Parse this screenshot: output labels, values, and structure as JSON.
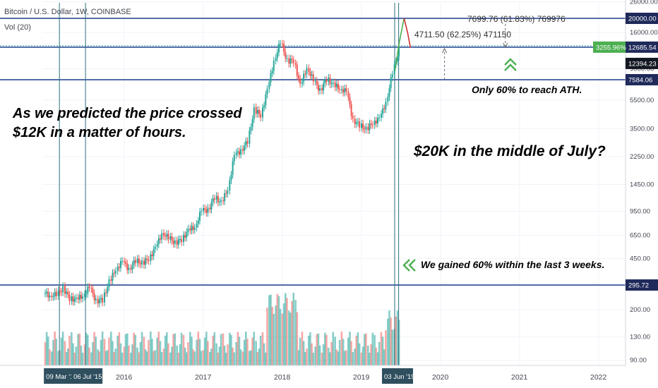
{
  "header": {
    "symbol": "Bitcoin / U.S. Dollar, 1W, COINBASE",
    "volume": "Vol (20)"
  },
  "annotations": {
    "predicted_line1": "As we predicted the price crossed",
    "predicted_line2": "$12K in a matter of hours.",
    "target": "$20K in the middle of July?",
    "ath": "Only 60% to reach ATH.",
    "gain": "We gained 60% within the last 3 weeks.",
    "measure_upper": "7699.76 (61.83%) 769976",
    "measure_lower": "4711.50 (62.25%) 471150"
  },
  "date_badges": {
    "a": "09 Mar '1",
    "b": "06 Jul '15",
    "c": "03 Jun '19"
  },
  "colors": {
    "up": "#26a69a",
    "down": "#ef5350",
    "level_line": "#1f3b8c",
    "accent_green": "#4caf50",
    "badge": "#2f4f5f"
  },
  "chart_data": {
    "type": "candlestick",
    "y_scale": "log",
    "ylim": [
      80,
      28000
    ],
    "price_ticks": [
      26000,
      16000,
      9000,
      5500,
      3500,
      2250,
      1450,
      950,
      650,
      450,
      290,
      200,
      130,
      90
    ],
    "x_labels": [
      "2016",
      "2017",
      "2018",
      "2019",
      "2020",
      "2021",
      "2022"
    ],
    "horizontal_levels": [
      {
        "value": 20000,
        "label": "20000.00"
      },
      {
        "value": 12685.54,
        "label": "12685.54"
      },
      {
        "value": 7584,
        "label": "7584.06"
      },
      {
        "value": 295.72,
        "label": "295.72"
      }
    ],
    "price_badges": [
      {
        "value": 12685.54,
        "label": "3255.96%",
        "color": "#4caf50"
      },
      {
        "value": 12394.23,
        "label": "12394.23",
        "color": "#131722"
      }
    ],
    "projection": {
      "x": [
        "2019-06-03",
        "2019-06-24",
        "2019-07-15"
      ],
      "y": [
        8700,
        13800,
        20000
      ]
    },
    "series": [
      {
        "x": "2015-01",
        "close": 250
      },
      {
        "x": "2015-02",
        "close": 255
      },
      {
        "x": "2015-03",
        "close": 280
      },
      {
        "x": "2015-04",
        "close": 240
      },
      {
        "x": "2015-05",
        "close": 235
      },
      {
        "x": "2015-06",
        "close": 250
      },
      {
        "x": "2015-07",
        "close": 285
      },
      {
        "x": "2015-08",
        "close": 230
      },
      {
        "x": "2015-09",
        "close": 235
      },
      {
        "x": "2015-10",
        "close": 310
      },
      {
        "x": "2015-11",
        "close": 380
      },
      {
        "x": "2015-12",
        "close": 430
      },
      {
        "x": "2016-01",
        "close": 380
      },
      {
        "x": "2016-02",
        "close": 435
      },
      {
        "x": "2016-03",
        "close": 415
      },
      {
        "x": "2016-04",
        "close": 450
      },
      {
        "x": "2016-05",
        "close": 530
      },
      {
        "x": "2016-06",
        "close": 670
      },
      {
        "x": "2016-07",
        "close": 625
      },
      {
        "x": "2016-08",
        "close": 575
      },
      {
        "x": "2016-09",
        "close": 610
      },
      {
        "x": "2016-10",
        "close": 700
      },
      {
        "x": "2016-11",
        "close": 740
      },
      {
        "x": "2016-12",
        "close": 960
      },
      {
        "x": "2017-01",
        "close": 970
      },
      {
        "x": "2017-02",
        "close": 1190
      },
      {
        "x": "2017-03",
        "close": 1080
      },
      {
        "x": "2017-04",
        "close": 1350
      },
      {
        "x": "2017-05",
        "close": 2300
      },
      {
        "x": "2017-06",
        "close": 2480
      },
      {
        "x": "2017-07",
        "close": 2870
      },
      {
        "x": "2017-08",
        "close": 4700
      },
      {
        "x": "2017-09",
        "close": 4340
      },
      {
        "x": "2017-10",
        "close": 6450
      },
      {
        "x": "2017-11",
        "close": 10200
      },
      {
        "x": "2017-12",
        "close": 13800
      },
      {
        "x": "2018-01",
        "close": 10200
      },
      {
        "x": "2018-02",
        "close": 10300
      },
      {
        "x": "2018-03",
        "close": 6900
      },
      {
        "x": "2018-04",
        "close": 9200
      },
      {
        "x": "2018-05",
        "close": 7500
      },
      {
        "x": "2018-06",
        "close": 6400
      },
      {
        "x": "2018-07",
        "close": 7700
      },
      {
        "x": "2018-08",
        "close": 7000
      },
      {
        "x": "2018-09",
        "close": 6600
      },
      {
        "x": "2018-10",
        "close": 6300
      },
      {
        "x": "2018-11",
        "close": 4000
      },
      {
        "x": "2018-12",
        "close": 3700
      },
      {
        "x": "2019-01",
        "close": 3450
      },
      {
        "x": "2019-02",
        "close": 3850
      },
      {
        "x": "2019-03",
        "close": 4100
      },
      {
        "x": "2019-04",
        "close": 5300
      },
      {
        "x": "2019-05",
        "close": 8500
      },
      {
        "x": "2019-06",
        "close": 12400
      }
    ]
  }
}
